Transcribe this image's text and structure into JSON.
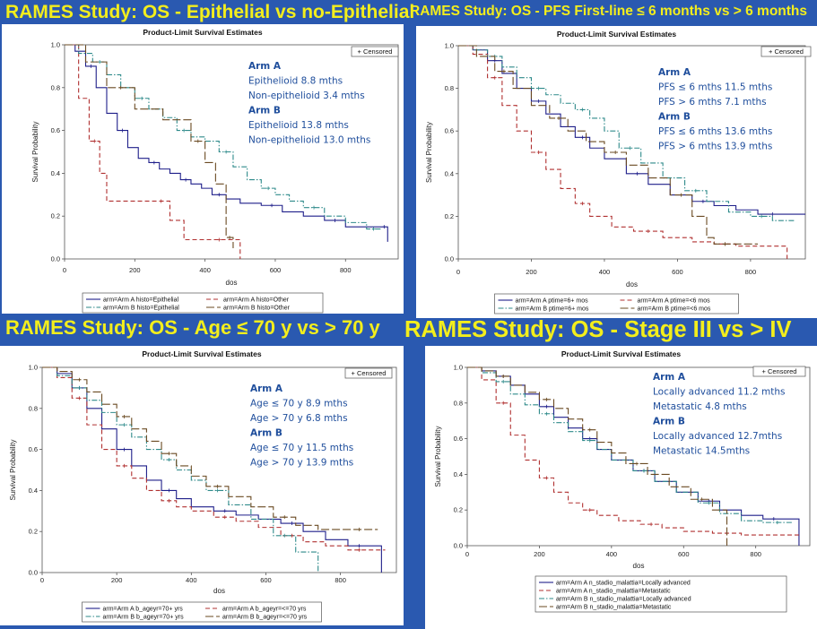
{
  "headers": [
    "RAMES Study:  OS  - Epithelial vs no-Epithelial",
    "RAMES Study: OS  - PFS First-line ≤ 6 months vs > 6 months",
    "RAMES Study:  OS  - Age ≤ 70 y vs > 70 y",
    "RAMES Study: OS  - Stage III vs > IV"
  ],
  "colors": {
    "background": "#2a59b0",
    "header_text": "#f3ee1c",
    "annotation": "#1f4e9c",
    "s1": "#1f1f8a",
    "s2": "#b03030",
    "s3": "#2e8a8a",
    "s4": "#6a4a22"
  },
  "chart_data": [
    {
      "type": "line",
      "title": "Product-Limit Survival Estimates",
      "xlabel": "dos",
      "ylabel": "Survival Probability",
      "xlim": [
        0,
        950
      ],
      "ylim": [
        0,
        1.0
      ],
      "xticks": [
        "0",
        "200",
        "400",
        "600",
        "800"
      ],
      "yticks": [
        "0.0",
        "0.2",
        "0.4",
        "0.6",
        "0.8",
        "1.0"
      ],
      "censored_label": "+ Censored",
      "annotations": [
        {
          "text": "Arm A",
          "bold": true
        },
        {
          "text": "Epithelioid        8.8 mths"
        },
        {
          "text": "Non-epithelioid  3.4 mths"
        },
        {
          "text": "Arm B",
          "bold": true
        },
        {
          "text": "Epithelioid        13.8 mths"
        },
        {
          "text": "Non-epithelioid 13.0 mths"
        }
      ],
      "series": [
        {
          "name": "arm=Arm A histo=Epithelial",
          "style": "s1",
          "x": [
            0,
            30,
            60,
            90,
            120,
            150,
            180,
            210,
            240,
            270,
            300,
            330,
            360,
            390,
            420,
            460,
            500,
            560,
            620,
            680,
            740,
            800,
            860,
            900,
            920
          ],
          "y": [
            1.0,
            0.97,
            0.9,
            0.8,
            0.68,
            0.6,
            0.52,
            0.47,
            0.45,
            0.42,
            0.4,
            0.37,
            0.35,
            0.33,
            0.3,
            0.28,
            0.26,
            0.25,
            0.22,
            0.2,
            0.18,
            0.15,
            0.15,
            0.15,
            0.08
          ]
        },
        {
          "name": "arm=Arm A histo=Other",
          "style": "s2",
          "x": [
            0,
            40,
            70,
            100,
            120,
            250,
            300,
            340,
            400,
            480,
            500
          ],
          "y": [
            1.0,
            0.75,
            0.55,
            0.4,
            0.27,
            0.27,
            0.18,
            0.09,
            0.09,
            0.09,
            0.0
          ]
        },
        {
          "name": "arm=Arm B histo=Epithelial",
          "style": "s3",
          "x": [
            0,
            40,
            80,
            120,
            160,
            200,
            240,
            280,
            320,
            360,
            400,
            440,
            480,
            520,
            560,
            600,
            640,
            680,
            740,
            800,
            860,
            900
          ],
          "y": [
            1.0,
            0.96,
            0.92,
            0.86,
            0.8,
            0.75,
            0.7,
            0.66,
            0.6,
            0.57,
            0.55,
            0.5,
            0.43,
            0.37,
            0.33,
            0.3,
            0.27,
            0.24,
            0.2,
            0.17,
            0.14,
            0.14
          ]
        },
        {
          "name": "arm=Arm B histo=Other",
          "style": "s4",
          "x": [
            0,
            60,
            120,
            200,
            280,
            360,
            400,
            430,
            460,
            480
          ],
          "y": [
            1.0,
            0.92,
            0.8,
            0.7,
            0.65,
            0.55,
            0.45,
            0.35,
            0.1,
            0.05
          ]
        }
      ]
    },
    {
      "type": "line",
      "title": "Product-Limit Survival Estimates",
      "xlabel": "dos",
      "ylabel": "Survival Probability",
      "xlim": [
        0,
        950
      ],
      "ylim": [
        0,
        1.0
      ],
      "xticks": [
        "0",
        "200",
        "400",
        "600",
        "800"
      ],
      "yticks": [
        "0.0",
        "0.2",
        "0.4",
        "0.6",
        "0.8",
        "1.0"
      ],
      "censored_label": "+ Censored",
      "annotations": [
        {
          "text": "Arm A",
          "bold": true
        },
        {
          "text": "PFS ≤ 6 mths  11.5 mths"
        },
        {
          "text": "PFS > 6 mths    7.1 mths"
        },
        {
          "text": "Arm B",
          "bold": true
        },
        {
          "text": "PFS ≤ 6 mths  13.6 mths"
        },
        {
          "text": "PFS > 6 mths  13.9 mths"
        }
      ],
      "series": [
        {
          "name": "arm=Arm A ptime=6+ mos",
          "style": "s1",
          "x": [
            0,
            40,
            80,
            120,
            160,
            200,
            240,
            280,
            320,
            360,
            400,
            460,
            520,
            580,
            640,
            700,
            760,
            820,
            900,
            950
          ],
          "y": [
            1.0,
            0.98,
            0.93,
            0.87,
            0.8,
            0.74,
            0.68,
            0.62,
            0.57,
            0.52,
            0.47,
            0.4,
            0.35,
            0.3,
            0.27,
            0.25,
            0.23,
            0.21,
            0.21,
            0.21
          ]
        },
        {
          "name": "arm=Arm A ptime=<6 mos",
          "style": "s2",
          "x": [
            0,
            40,
            80,
            120,
            160,
            200,
            240,
            280,
            320,
            360,
            420,
            480,
            560,
            640,
            700,
            760,
            840,
            900
          ],
          "y": [
            1.0,
            0.96,
            0.85,
            0.72,
            0.6,
            0.5,
            0.42,
            0.33,
            0.26,
            0.2,
            0.15,
            0.13,
            0.1,
            0.08,
            0.07,
            0.06,
            0.06,
            0.0
          ]
        },
        {
          "name": "arm=Arm B ptime=6+ mos",
          "style": "s3",
          "x": [
            0,
            40,
            80,
            120,
            160,
            200,
            240,
            280,
            320,
            360,
            400,
            440,
            500,
            560,
            620,
            680,
            740,
            800,
            860,
            920
          ],
          "y": [
            1.0,
            0.98,
            0.95,
            0.9,
            0.85,
            0.8,
            0.77,
            0.73,
            0.7,
            0.66,
            0.6,
            0.52,
            0.45,
            0.38,
            0.32,
            0.27,
            0.22,
            0.2,
            0.18,
            0.18
          ]
        },
        {
          "name": "arm=Arm B ptime=<6 mos",
          "style": "s4",
          "x": [
            0,
            50,
            100,
            150,
            200,
            250,
            300,
            350,
            400,
            460,
            520,
            580,
            640,
            680,
            700,
            760,
            820
          ],
          "y": [
            1.0,
            0.95,
            0.88,
            0.8,
            0.72,
            0.66,
            0.6,
            0.55,
            0.5,
            0.44,
            0.38,
            0.3,
            0.2,
            0.1,
            0.07,
            0.07,
            0.07
          ]
        }
      ]
    },
    {
      "type": "line",
      "title": "Product-Limit Survival Estimates",
      "xlabel": "dos",
      "ylabel": "Survival Probability",
      "xlim": [
        0,
        950
      ],
      "ylim": [
        0,
        1.0
      ],
      "xticks": [
        "0",
        "200",
        "400",
        "600",
        "800"
      ],
      "yticks": [
        "0.0",
        "0.2",
        "0.4",
        "0.6",
        "0.8",
        "1.0"
      ],
      "censored_label": "+ Censored",
      "annotations": [
        {
          "text": "Arm A",
          "bold": true
        },
        {
          "text": "Age ≤ 70 y  8.9 mths"
        },
        {
          "text": "Age > 70 y  6.8 mths"
        },
        {
          "text": "Arm B",
          "bold": true
        },
        {
          "text": "Age ≤ 70 y 11.5 mths"
        },
        {
          "text": "Age > 70 y 13.9 mths"
        }
      ],
      "series": [
        {
          "name": "arm=Arm A b_ageyr=70+ yrs",
          "style": "s1",
          "x": [
            0,
            40,
            80,
            120,
            160,
            200,
            240,
            280,
            320,
            360,
            400,
            460,
            520,
            580,
            640,
            700,
            760,
            820,
            880,
            910
          ],
          "y": [
            1.0,
            0.97,
            0.9,
            0.8,
            0.7,
            0.6,
            0.52,
            0.45,
            0.4,
            0.36,
            0.32,
            0.3,
            0.28,
            0.26,
            0.24,
            0.2,
            0.16,
            0.13,
            0.13,
            0.0
          ]
        },
        {
          "name": "arm=Arm A b_ageyr=<=70 yrs",
          "style": "s2",
          "x": [
            0,
            40,
            80,
            120,
            160,
            200,
            240,
            280,
            320,
            360,
            400,
            460,
            520,
            580,
            640,
            700,
            760,
            820,
            880,
            920
          ],
          "y": [
            1.0,
            0.95,
            0.85,
            0.72,
            0.6,
            0.52,
            0.46,
            0.4,
            0.35,
            0.32,
            0.3,
            0.27,
            0.25,
            0.22,
            0.18,
            0.15,
            0.13,
            0.11,
            0.11,
            0.11
          ]
        },
        {
          "name": "arm=Arm B b_ageyr=70+ yrs",
          "style": "s3",
          "x": [
            0,
            40,
            80,
            120,
            160,
            200,
            240,
            280,
            320,
            360,
            400,
            440,
            500,
            560,
            620,
            680,
            740
          ],
          "y": [
            1.0,
            0.96,
            0.9,
            0.84,
            0.78,
            0.72,
            0.66,
            0.6,
            0.55,
            0.5,
            0.45,
            0.4,
            0.33,
            0.26,
            0.18,
            0.1,
            0.0
          ]
        },
        {
          "name": "arm=Arm B b_ageyr=<=70 yrs",
          "style": "s4",
          "x": [
            0,
            40,
            80,
            120,
            160,
            200,
            240,
            280,
            320,
            360,
            400,
            440,
            500,
            560,
            620,
            680,
            740,
            800,
            900
          ],
          "y": [
            1.0,
            0.98,
            0.94,
            0.88,
            0.82,
            0.76,
            0.7,
            0.64,
            0.58,
            0.52,
            0.47,
            0.42,
            0.37,
            0.32,
            0.27,
            0.23,
            0.21,
            0.21,
            0.21
          ]
        }
      ]
    },
    {
      "type": "line",
      "title": "Product-Limit Survival Estimates",
      "xlabel": "dos",
      "ylabel": "Survival Probability",
      "xlim": [
        0,
        950
      ],
      "ylim": [
        0,
        1.0
      ],
      "xticks": [
        "0",
        "200",
        "400",
        "600",
        "800"
      ],
      "yticks": [
        "0.0",
        "0.2",
        "0.4",
        "0.6",
        "0.8",
        "1.0"
      ],
      "censored_label": "+ Censored",
      "annotations": [
        {
          "text": "Arm A",
          "bold": true
        },
        {
          "text": "Locally advanced  11.2 mths"
        },
        {
          "text": "Metastatic               4.8 mths"
        },
        {
          "text": "Arm B",
          "bold": true
        },
        {
          "text": "Locally advanced  12.7mths"
        },
        {
          "text": "Metastatic             14.5mths"
        }
      ],
      "series": [
        {
          "name": "arm=Arm A n_stadio_malattia=Locally advanced",
          "style": "s1",
          "x": [
            0,
            40,
            80,
            120,
            160,
            200,
            240,
            280,
            320,
            360,
            400,
            460,
            520,
            580,
            640,
            700,
            760,
            820,
            880,
            920
          ],
          "y": [
            1.0,
            0.98,
            0.95,
            0.9,
            0.85,
            0.78,
            0.72,
            0.66,
            0.6,
            0.54,
            0.48,
            0.42,
            0.36,
            0.3,
            0.25,
            0.2,
            0.17,
            0.15,
            0.15,
            0.0
          ]
        },
        {
          "name": "arm=Arm A n_stadio_malattia=Metastatic",
          "style": "s2",
          "x": [
            0,
            40,
            80,
            120,
            160,
            200,
            240,
            280,
            320,
            360,
            420,
            480,
            540,
            600,
            680,
            760,
            840,
            920
          ],
          "y": [
            1.0,
            0.93,
            0.8,
            0.62,
            0.48,
            0.38,
            0.3,
            0.24,
            0.2,
            0.17,
            0.14,
            0.12,
            0.1,
            0.08,
            0.07,
            0.06,
            0.06,
            0.06
          ]
        },
        {
          "name": "arm=Arm B n_stadio_malattia=Locally advanced",
          "style": "s3",
          "x": [
            0,
            40,
            80,
            120,
            160,
            200,
            240,
            280,
            320,
            360,
            400,
            460,
            520,
            580,
            640,
            700,
            760,
            820,
            900
          ],
          "y": [
            1.0,
            0.97,
            0.92,
            0.85,
            0.79,
            0.74,
            0.69,
            0.64,
            0.59,
            0.54,
            0.48,
            0.42,
            0.36,
            0.3,
            0.24,
            0.18,
            0.14,
            0.13,
            0.13
          ]
        },
        {
          "name": "arm=Arm B n_stadio_malattia=Metastatic",
          "style": "s4",
          "x": [
            0,
            40,
            80,
            120,
            160,
            200,
            240,
            280,
            320,
            360,
            400,
            440,
            500,
            560,
            620,
            680,
            720
          ],
          "y": [
            1.0,
            0.98,
            0.95,
            0.9,
            0.86,
            0.82,
            0.77,
            0.71,
            0.65,
            0.58,
            0.52,
            0.46,
            0.4,
            0.33,
            0.26,
            0.2,
            0.0
          ]
        }
      ]
    }
  ]
}
